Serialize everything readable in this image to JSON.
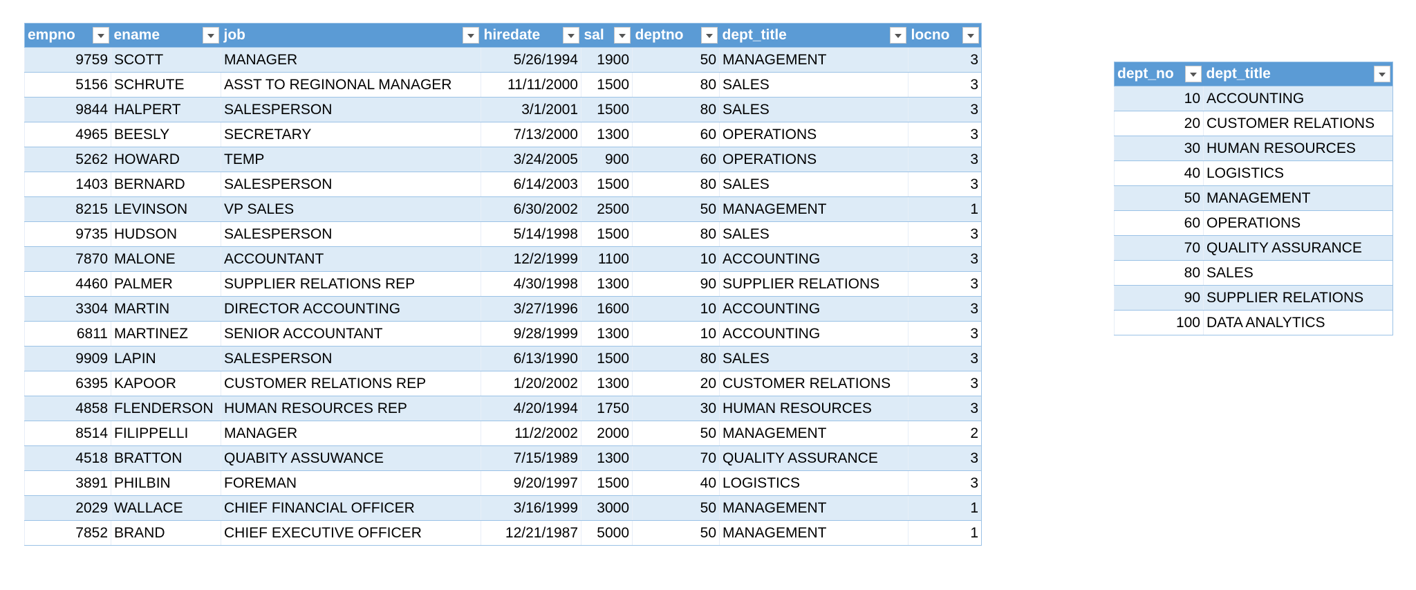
{
  "employees": {
    "columns": [
      "empno",
      "ename",
      "job",
      "hiredate",
      "sal",
      "deptno",
      "dept_title",
      "locno"
    ],
    "rows": [
      [
        9759,
        "SCOTT",
        "MANAGER",
        "5/26/1994",
        1900,
        50,
        "MANAGEMENT",
        3
      ],
      [
        5156,
        "SCHRUTE",
        "ASST TO REGINONAL MANAGER",
        "11/11/2000",
        1500,
        80,
        "SALES",
        3
      ],
      [
        9844,
        "HALPERT",
        "SALESPERSON",
        "3/1/2001",
        1500,
        80,
        "SALES",
        3
      ],
      [
        4965,
        "BEESLY",
        "SECRETARY",
        "7/13/2000",
        1300,
        60,
        "OPERATIONS",
        3
      ],
      [
        5262,
        "HOWARD",
        "TEMP",
        "3/24/2005",
        900,
        60,
        "OPERATIONS",
        3
      ],
      [
        1403,
        "BERNARD",
        "SALESPERSON",
        "6/14/2003",
        1500,
        80,
        "SALES",
        3
      ],
      [
        8215,
        "LEVINSON",
        "VP SALES",
        "6/30/2002",
        2500,
        50,
        "MANAGEMENT",
        1
      ],
      [
        9735,
        "HUDSON",
        "SALESPERSON",
        "5/14/1998",
        1500,
        80,
        "SALES",
        3
      ],
      [
        7870,
        "MALONE",
        "ACCOUNTANT",
        "12/2/1999",
        1100,
        10,
        "ACCOUNTING",
        3
      ],
      [
        4460,
        "PALMER",
        "SUPPLIER RELATIONS REP",
        "4/30/1998",
        1300,
        90,
        "SUPPLIER RELATIONS",
        3
      ],
      [
        3304,
        "MARTIN",
        "DIRECTOR ACCOUNTING",
        "3/27/1996",
        1600,
        10,
        "ACCOUNTING",
        3
      ],
      [
        6811,
        "MARTINEZ",
        "SENIOR ACCOUNTANT",
        "9/28/1999",
        1300,
        10,
        "ACCOUNTING",
        3
      ],
      [
        9909,
        "LAPIN",
        "SALESPERSON",
        "6/13/1990",
        1500,
        80,
        "SALES",
        3
      ],
      [
        6395,
        "KAPOOR",
        "CUSTOMER RELATIONS REP",
        "1/20/2002",
        1300,
        20,
        "CUSTOMER RELATIONS",
        3
      ],
      [
        4858,
        "FLENDERSON",
        "HUMAN RESOURCES REP",
        "4/20/1994",
        1750,
        30,
        "HUMAN RESOURCES",
        3
      ],
      [
        8514,
        "FILIPPELLI",
        "MANAGER",
        "11/2/2002",
        2000,
        50,
        "MANAGEMENT",
        2
      ],
      [
        4518,
        "BRATTON",
        "QUABITY ASSUWANCE",
        "7/15/1989",
        1300,
        70,
        "QUALITY ASSURANCE",
        3
      ],
      [
        3891,
        "PHILBIN",
        "FOREMAN",
        "9/20/1997",
        1500,
        40,
        "LOGISTICS",
        3
      ],
      [
        2029,
        "WALLACE",
        "CHIEF FINANCIAL OFFICER",
        "3/16/1999",
        3000,
        50,
        "MANAGEMENT",
        1
      ],
      [
        7852,
        "BRAND",
        "CHIEF EXECUTIVE OFFICER",
        "12/21/1987",
        5000,
        50,
        "MANAGEMENT",
        1
      ]
    ]
  },
  "departments": {
    "columns": [
      "dept_no",
      "dept_title"
    ],
    "rows": [
      [
        10,
        "ACCOUNTING"
      ],
      [
        20,
        "CUSTOMER RELATIONS"
      ],
      [
        30,
        "HUMAN RESOURCES"
      ],
      [
        40,
        "LOGISTICS"
      ],
      [
        50,
        "MANAGEMENT"
      ],
      [
        60,
        "OPERATIONS"
      ],
      [
        70,
        "QUALITY ASSURANCE"
      ],
      [
        80,
        "SALES"
      ],
      [
        90,
        "SUPPLIER RELATIONS"
      ],
      [
        100,
        "DATA ANALYTICS"
      ]
    ]
  }
}
